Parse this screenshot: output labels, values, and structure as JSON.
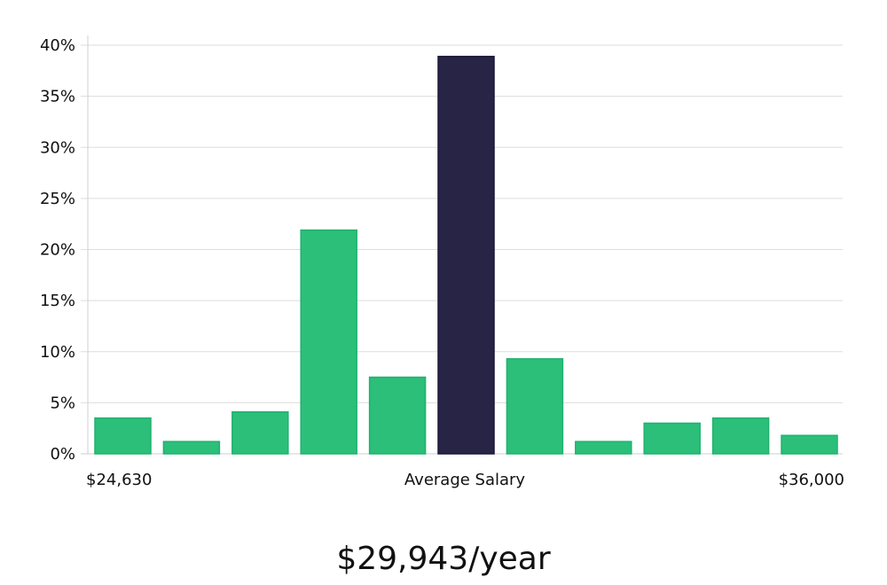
{
  "chart_data": {
    "type": "bar",
    "title": "",
    "xlabel": "",
    "ylabel": "",
    "ylim": [
      0,
      40
    ],
    "y_ticks": [
      "0%",
      "5%",
      "10%",
      "15%",
      "20%",
      "25%",
      "30%",
      "35%",
      "40%"
    ],
    "y_tick_values": [
      0,
      5,
      10,
      15,
      20,
      25,
      30,
      35,
      40
    ],
    "values": [
      3.5,
      1.2,
      4.1,
      21.9,
      7.5,
      38.9,
      9.3,
      1.2,
      3.0,
      3.5,
      1.8
    ],
    "highlight_index": 5,
    "x_labels": {
      "min": "$24,630",
      "middle": "Average Salary",
      "max": "$36,000"
    },
    "grid": true,
    "colors": {
      "bar": "#2bbf7a",
      "bar_border": "#21b26e",
      "highlight": "#272446",
      "highlight_border": "#1a1838",
      "grid": "#dddddd",
      "axis": "#cfcfcf"
    }
  },
  "summary": {
    "average_salary": "$29,943/year"
  }
}
